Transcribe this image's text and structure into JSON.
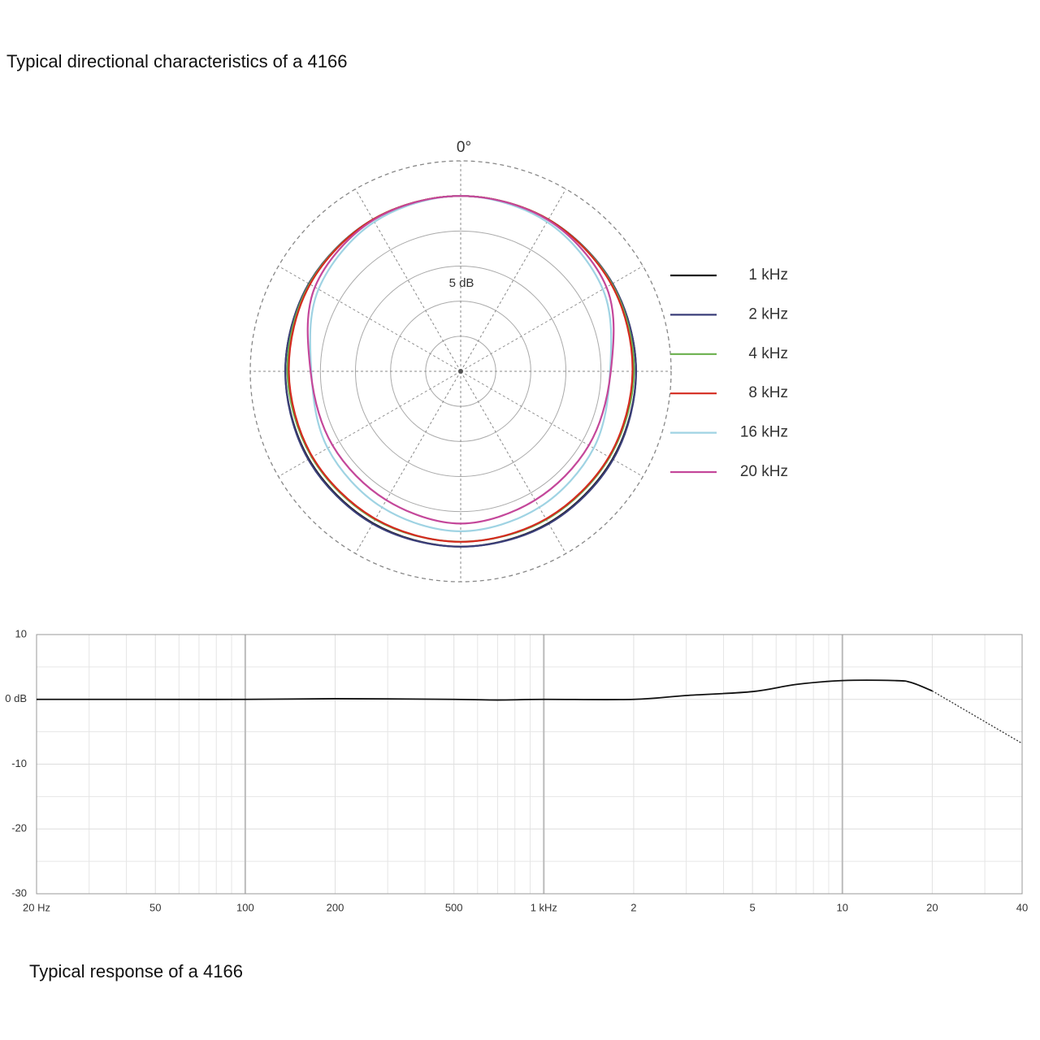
{
  "chart_data": [
    {
      "type": "polar",
      "title": "Typical directional characteristics of a 4166",
      "angle_label": "0°",
      "ring_label": "5 dB",
      "theta": [
        0,
        30,
        60,
        90,
        120,
        150,
        180,
        210,
        240,
        270,
        300,
        330
      ],
      "rlim": [
        -30,
        0
      ],
      "rticks": [
        -30,
        -25,
        -20,
        -15,
        -10,
        -5,
        0
      ],
      "series": [
        {
          "name": "1 kHz",
          "color": "#1a1a1a",
          "values": [
            -5,
            -5,
            -5,
            -5,
            -5,
            -5,
            -5,
            -5,
            -5,
            -5,
            -5,
            -5
          ]
        },
        {
          "name": "2 kHz",
          "color": "#3b3f7a",
          "values": [
            -5,
            -5,
            -5,
            -5,
            -4.9,
            -4.9,
            -5,
            -4.9,
            -4.9,
            -5,
            -5,
            -5
          ]
        },
        {
          "name": "4 kHz",
          "color": "#6ab04c",
          "values": [
            -5,
            -5,
            -5.1,
            -5.3,
            -5.5,
            -5.6,
            -5.7,
            -5.6,
            -5.5,
            -5.3,
            -5.1,
            -5
          ]
        },
        {
          "name": "8 kHz",
          "color": "#d42a1f",
          "values": [
            -5,
            -5,
            -5.2,
            -5.5,
            -5.6,
            -5.7,
            -5.7,
            -5.7,
            -5.6,
            -5.5,
            -5.2,
            -5
          ]
        },
        {
          "name": "16 kHz",
          "color": "#9fd3e3",
          "values": [
            -5,
            -5.4,
            -6.6,
            -8.7,
            -8.1,
            -7.6,
            -7.2,
            -7.6,
            -8.1,
            -8.7,
            -6.6,
            -5.4
          ]
        },
        {
          "name": "20 kHz",
          "color": "#c4479a",
          "values": [
            -5,
            -5.1,
            -6.0,
            -8.6,
            -8.9,
            -8.8,
            -8.3,
            -8.8,
            -8.9,
            -8.6,
            -6.0,
            -5.1
          ]
        }
      ]
    },
    {
      "type": "line",
      "title": "Typical response of a 4166",
      "log_x": true,
      "grid": true,
      "x": [
        20,
        50,
        100,
        200,
        500,
        700,
        1000,
        2000,
        3000,
        5000,
        7000,
        10000,
        15000,
        17000,
        20000,
        40000
      ],
      "series": [
        {
          "color": "#111111",
          "style": "solid",
          "values": [
            0,
            0,
            0,
            0.1,
            0,
            -0.1,
            0,
            0,
            0.6,
            1.2,
            2.3,
            2.9,
            2.9,
            2.6,
            1.3,
            null
          ]
        },
        {
          "color": "#333333",
          "style": "dotted",
          "values": [
            null,
            null,
            null,
            null,
            null,
            null,
            null,
            null,
            null,
            null,
            null,
            null,
            null,
            null,
            1.3,
            -6.8
          ]
        }
      ],
      "xlim": [
        20,
        40000
      ],
      "xticks": [
        {
          "value": 20,
          "label": "20 Hz"
        },
        50,
        100,
        200,
        500,
        {
          "value": 1000,
          "label": "1 kHz"
        },
        {
          "value": 2000,
          "label": "2"
        },
        {
          "value": 5000,
          "label": "5"
        },
        {
          "value": 10000,
          "label": "10"
        },
        {
          "value": 20000,
          "label": "20"
        },
        {
          "value": 40000,
          "label": "40"
        }
      ],
      "minor_xticks": [
        30,
        40,
        60,
        70,
        80,
        90,
        300,
        400,
        600,
        700,
        800,
        900,
        3000,
        4000,
        6000,
        7000,
        8000,
        9000,
        30000
      ],
      "ylim": [
        -30,
        10
      ],
      "yticks": [
        10,
        {
          "value": 0,
          "label": "0 dB"
        },
        -10,
        -20,
        -30
      ],
      "minor_yticks": [
        5,
        -5,
        -15,
        -25
      ]
    }
  ]
}
